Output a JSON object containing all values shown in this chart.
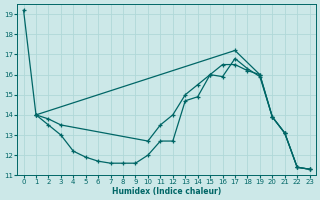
{
  "xlabel": "Humidex (Indice chaleur)",
  "bg_color": "#cce8e8",
  "grid_color": "#b0d8d8",
  "line_color": "#006666",
  "marker_color": "#006666",
  "xlim": [
    -0.5,
    23.5
  ],
  "ylim": [
    11,
    19.5
  ],
  "yticks": [
    11,
    12,
    13,
    14,
    15,
    16,
    17,
    18,
    19
  ],
  "xticks": [
    0,
    1,
    2,
    3,
    4,
    5,
    6,
    7,
    8,
    9,
    10,
    11,
    12,
    13,
    14,
    15,
    16,
    17,
    18,
    19,
    20,
    21,
    22,
    23
  ],
  "series": [
    {
      "x": [
        0,
        1,
        17,
        19,
        20,
        21,
        22,
        23
      ],
      "y": [
        19.2,
        14.0,
        17.2,
        16.0,
        13.9,
        13.1,
        11.4,
        11.3
      ]
    },
    {
      "x": [
        1,
        2,
        3,
        10,
        11,
        12,
        13,
        14,
        15,
        16,
        17,
        18,
        19,
        20,
        21,
        22,
        23
      ],
      "y": [
        14.0,
        13.8,
        13.5,
        12.7,
        13.5,
        14.0,
        15.0,
        15.5,
        16.0,
        16.5,
        16.5,
        16.2,
        16.0,
        13.9,
        13.1,
        11.4,
        11.3
      ]
    },
    {
      "x": [
        1,
        2,
        3,
        4,
        5,
        6,
        7,
        8,
        9,
        10,
        11,
        12,
        13,
        14,
        15,
        16,
        17,
        18,
        19,
        20,
        21,
        22,
        23
      ],
      "y": [
        14.0,
        13.5,
        13.0,
        12.2,
        11.9,
        11.7,
        11.6,
        11.6,
        11.6,
        12.0,
        12.7,
        12.7,
        14.7,
        14.9,
        16.0,
        15.9,
        16.8,
        16.3,
        15.9,
        13.9,
        13.1,
        11.4,
        11.3
      ]
    }
  ]
}
